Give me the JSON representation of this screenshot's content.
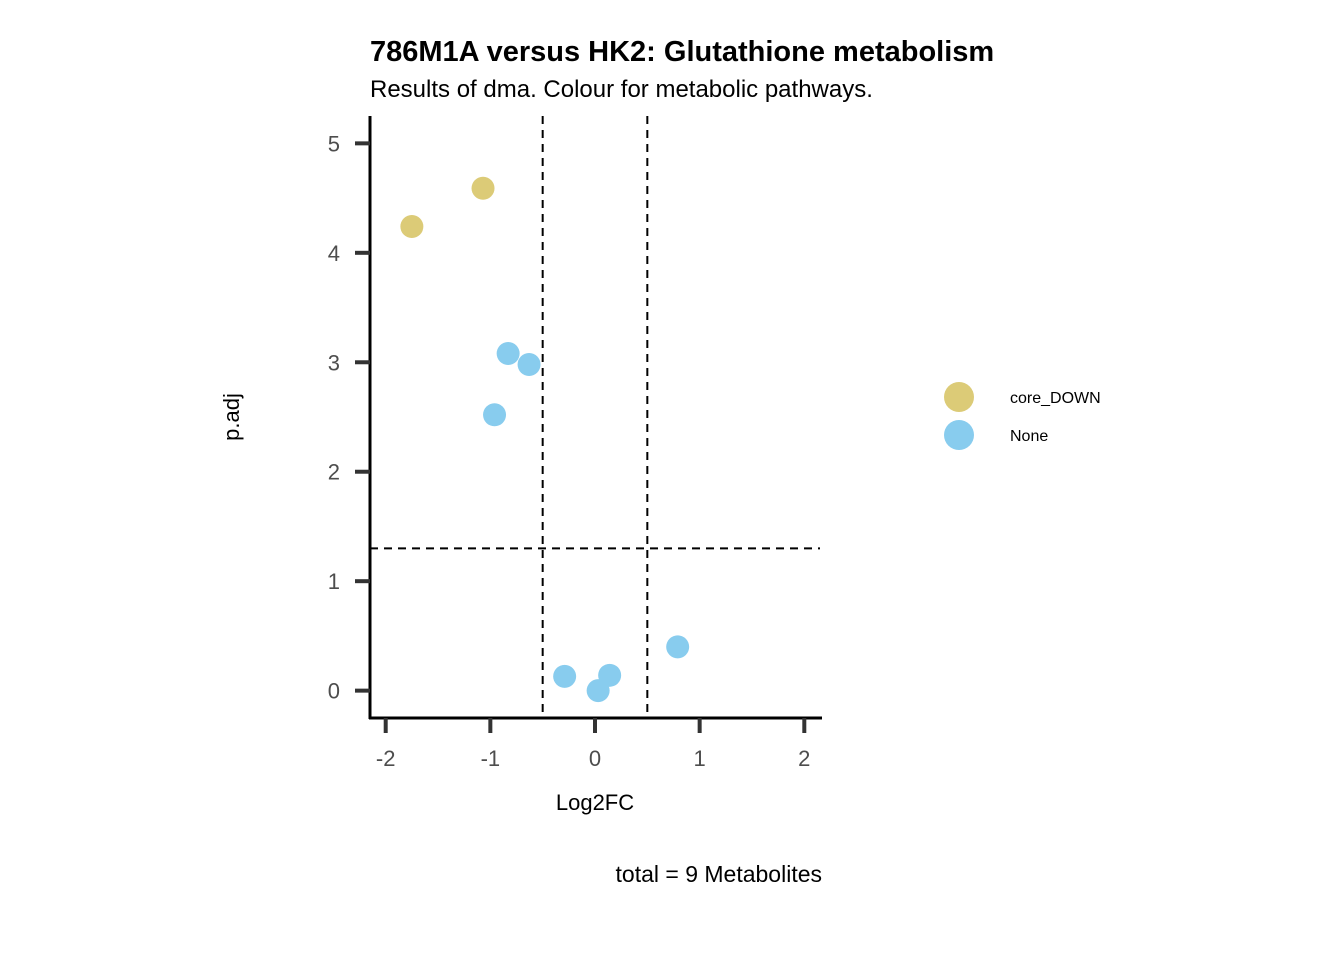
{
  "chart_data": {
    "type": "scatter",
    "title": "786M1A versus HK2: Glutathione metabolism",
    "subtitle": "Results of dma. Colour for metabolic pathways.",
    "xlabel": "Log2FC",
    "ylabel": "p.adj",
    "caption": "total = 9 Metabolites",
    "xlim": [
      -2.15,
      2.15
    ],
    "ylim": [
      -0.25,
      5.25
    ],
    "x_ticks": [
      -2,
      -1,
      0,
      1,
      2
    ],
    "x_tick_labels": [
      "-2",
      "-1",
      "0",
      "1",
      "2"
    ],
    "y_ticks": [
      0,
      1,
      2,
      3,
      4,
      5
    ],
    "y_tick_labels": [
      "0",
      "1",
      "2",
      "3",
      "4",
      "5"
    ],
    "thresholds": {
      "vertical": [
        -0.5,
        0.5
      ],
      "horizontal": [
        1.3
      ]
    },
    "legend": {
      "position": "right"
    },
    "series": [
      {
        "name": "core_DOWN",
        "color": "#DCCB77",
        "points": [
          {
            "x": -1.75,
            "y": 4.24
          },
          {
            "x": -1.07,
            "y": 4.59
          }
        ]
      },
      {
        "name": "None",
        "color": "#88CCEE",
        "points": [
          {
            "x": -0.83,
            "y": 3.08
          },
          {
            "x": -0.63,
            "y": 2.98
          },
          {
            "x": -0.96,
            "y": 2.52
          },
          {
            "x": 0.79,
            "y": 0.4
          },
          {
            "x": -0.29,
            "y": 0.13
          },
          {
            "x": 0.14,
            "y": 0.14
          },
          {
            "x": 0.03,
            "y": 0.0
          }
        ]
      }
    ]
  }
}
